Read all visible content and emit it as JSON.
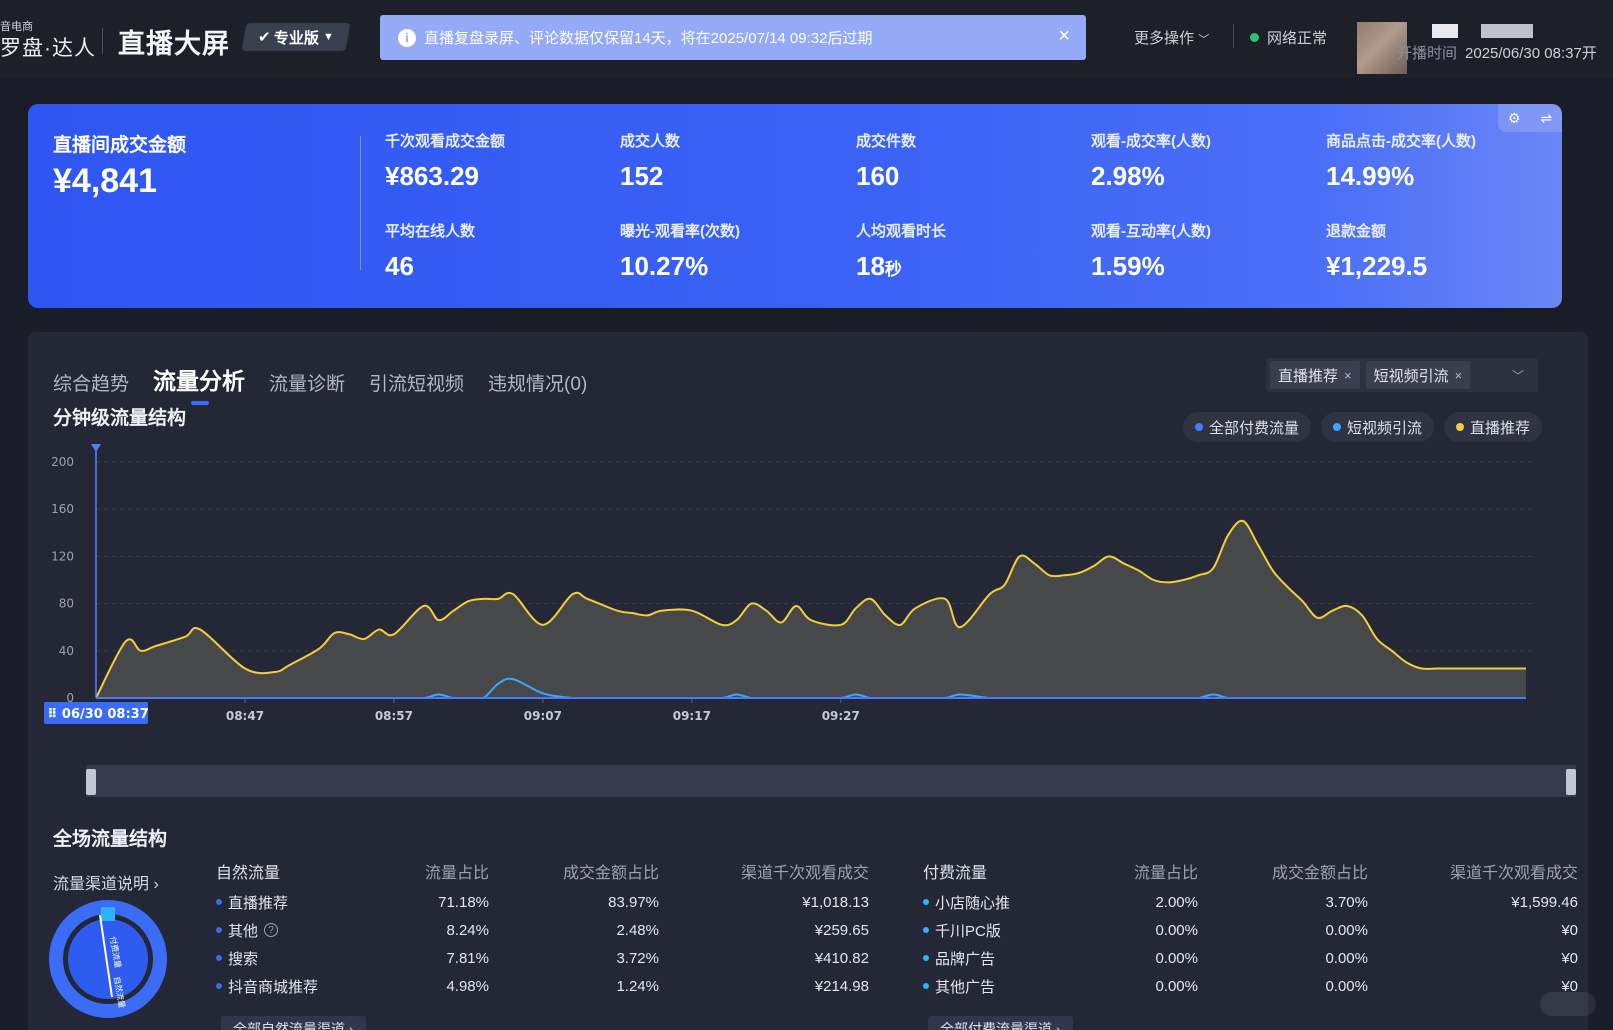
{
  "header": {
    "brand_small": "音电商",
    "brand": "罗盘·达人",
    "title": "直播大屏",
    "edition": "专业版",
    "notice": "直播复盘录屏、评论数据仅保留14天，将在2025/07/14 09:32后过期",
    "more_actions": "更多操作",
    "network_status": "网络正常",
    "start_time_label": "开播时间",
    "start_time": "2025/06/30 08:37开"
  },
  "kpi": {
    "main": {
      "label": "直播间成交金额",
      "value": "¥4,841"
    },
    "items": [
      {
        "label": "千次观看成交金额",
        "value": "¥863.29"
      },
      {
        "label": "成交人数",
        "value": "152"
      },
      {
        "label": "成交件数",
        "value": "160"
      },
      {
        "label": "观看-成交率(人数)",
        "value": "2.98%"
      },
      {
        "label": "商品点击-成交率(人数)",
        "value": "14.99%"
      },
      {
        "label": "平均在线人数",
        "value": "46"
      },
      {
        "label": "曝光-观看率(次数)",
        "value": "10.27%"
      },
      {
        "label": "人均观看时长",
        "value": "18",
        "unit": "秒"
      },
      {
        "label": "观看-互动率(人数)",
        "value": "1.59%"
      },
      {
        "label": "退款金额",
        "value": "¥1,229.5"
      }
    ]
  },
  "tabs": [
    "综合趋势",
    "流量分析",
    "流量诊断",
    "引流短视频",
    "违规情况(0)"
  ],
  "filters": {
    "chips": [
      "直播推荐",
      "短视频引流"
    ]
  },
  "minute_chart": {
    "title": "分钟级流量结构",
    "legend": [
      {
        "name": "全部付费流量",
        "color": "#4a78ff"
      },
      {
        "name": "短视频引流",
        "color": "#3aa6ff"
      },
      {
        "name": "直播推荐",
        "color": "#f5cd3a"
      }
    ],
    "cursor_label": "06/30 08:37"
  },
  "chart_data": {
    "type": "area",
    "x_ticks": [
      "08:47",
      "08:57",
      "09:07",
      "09:17",
      "09:27"
    ],
    "y_ticks": [
      0,
      40,
      80,
      120,
      160,
      200
    ],
    "ylim": [
      0,
      200
    ],
    "x_minutes": [
      0,
      2,
      3,
      4,
      6,
      7,
      10,
      12,
      13,
      15,
      16,
      17,
      18,
      19,
      20,
      22,
      23,
      24,
      25,
      26,
      27,
      28,
      30,
      32,
      33,
      35,
      36,
      37,
      38,
      40,
      42,
      43,
      44,
      45,
      46,
      47,
      48,
      50,
      51,
      52,
      53,
      54,
      55,
      57,
      58,
      60,
      61,
      62,
      63,
      64,
      65,
      66,
      67,
      68,
      69,
      70,
      71,
      72,
      73,
      74,
      75,
      76,
      77,
      78,
      79,
      80,
      81,
      82,
      83,
      84,
      85,
      86,
      87,
      88,
      89,
      90,
      91,
      92,
      93,
      94,
      95,
      96
    ],
    "series": [
      {
        "name": "直播推荐",
        "values": [
          0,
          48,
          40,
          44,
          52,
          58,
          25,
          22,
          28,
          42,
          55,
          54,
          50,
          58,
          54,
          78,
          66,
          74,
          82,
          84,
          84,
          88,
          62,
          88,
          84,
          74,
          72,
          70,
          74,
          74,
          62,
          66,
          80,
          74,
          64,
          78,
          66,
          62,
          76,
          84,
          70,
          62,
          76,
          84,
          60,
          88,
          96,
          120,
          114,
          104,
          104,
          106,
          112,
          120,
          114,
          108,
          100,
          98,
          100,
          104,
          110,
          138,
          150,
          130,
          108,
          94,
          82,
          68,
          74,
          78,
          70,
          50,
          40,
          30,
          25,
          25,
          25,
          25,
          25,
          25,
          25,
          25
        ]
      },
      {
        "name": "短视频引流",
        "values": [
          0,
          0,
          0,
          0,
          0,
          0,
          0,
          0,
          0,
          0,
          0,
          0,
          0,
          0,
          0,
          0,
          3,
          0,
          0,
          0,
          12,
          16,
          4,
          0,
          0,
          0,
          0,
          0,
          0,
          0,
          0,
          3,
          0,
          0,
          0,
          0,
          0,
          0,
          3,
          0,
          0,
          0,
          0,
          0,
          3,
          0,
          0,
          0,
          0,
          0,
          0,
          0,
          0,
          0,
          0,
          0,
          0,
          0,
          0,
          0,
          3,
          0,
          0,
          0,
          0,
          0,
          0,
          0,
          0,
          0,
          0,
          0,
          0,
          0,
          0,
          0,
          0,
          0,
          0,
          0,
          0,
          0
        ]
      },
      {
        "name": "全部付费流量",
        "values": [
          0,
          0,
          0,
          0,
          0,
          0,
          0,
          0,
          0,
          0,
          0,
          0,
          0,
          0,
          0,
          0,
          0,
          0,
          0,
          0,
          0,
          0,
          0,
          0,
          0,
          0,
          0,
          0,
          0,
          0,
          0,
          0,
          0,
          0,
          0,
          0,
          0,
          0,
          0,
          0,
          0,
          0,
          0,
          0,
          0,
          0,
          0,
          0,
          0,
          0,
          0,
          0,
          0,
          0,
          0,
          0,
          0,
          0,
          0,
          0,
          0,
          0,
          0,
          0,
          0,
          0,
          0,
          0,
          0,
          0,
          0,
          0,
          0,
          0,
          0,
          0,
          0,
          0,
          0,
          0,
          0,
          0
        ]
      }
    ]
  },
  "traffic": {
    "title": "全场流量结构",
    "channel_link": "流量渠道说明",
    "gauge_labels": [
      "付费流量",
      "自然流量"
    ],
    "natural": {
      "header": [
        "自然流量",
        "流量占比",
        "成交金额占比",
        "渠道千次观看成交"
      ],
      "rows": [
        {
          "name": "直播推荐",
          "share": "71.18%",
          "gmv_share": "83.97%",
          "gpm": "¥1,018.13",
          "color": "#3b6cf6"
        },
        {
          "name": "其他",
          "share": "8.24%",
          "gmv_share": "2.48%",
          "gpm": "¥259.65",
          "color": "#3b6cf6",
          "help": "?"
        },
        {
          "name": "搜索",
          "share": "7.81%",
          "gmv_share": "3.72%",
          "gpm": "¥410.82",
          "color": "#3b6cf6"
        },
        {
          "name": "抖音商城推荐",
          "share": "4.98%",
          "gmv_share": "1.24%",
          "gpm": "¥214.98",
          "color": "#3b6cf6"
        }
      ],
      "all_button": "全部自然流量渠道"
    },
    "paid": {
      "header": [
        "付费流量",
        "流量占比",
        "成交金额占比",
        "渠道千次观看成交"
      ],
      "rows": [
        {
          "name": "小店随心推",
          "share": "2.00%",
          "gmv_share": "3.70%",
          "gpm": "¥1,599.46",
          "color": "#2bb3ff"
        },
        {
          "name": "千川PC版",
          "share": "0.00%",
          "gmv_share": "0.00%",
          "gpm": "¥0",
          "color": "#2bb3ff"
        },
        {
          "name": "品牌广告",
          "share": "0.00%",
          "gmv_share": "0.00%",
          "gpm": "¥0",
          "color": "#2bb3ff"
        },
        {
          "name": "其他广告",
          "share": "0.00%",
          "gmv_share": "0.00%",
          "gpm": "¥0",
          "color": "#2bb3ff"
        }
      ],
      "all_button": "全部付费流量渠道"
    }
  }
}
